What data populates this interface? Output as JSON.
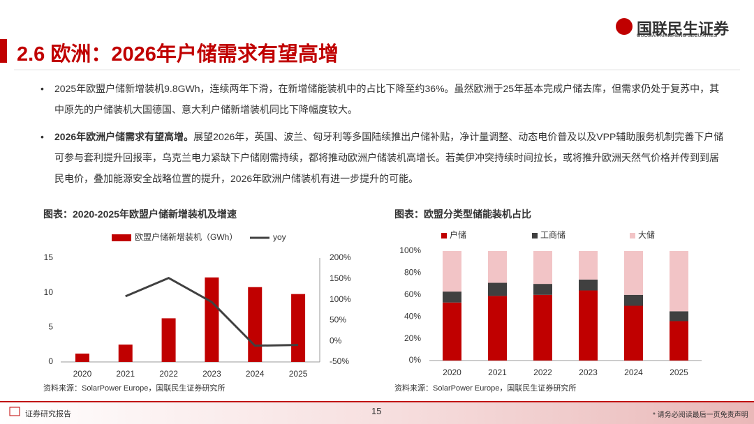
{
  "header": {
    "title": "2.6 欧洲：2026年户储需求有望高增",
    "logo": "国联民生证券",
    "logo_en": "GUOLIAN MINSHENG SECURITIES"
  },
  "bullets": [
    {
      "text": "2025年欧盟户储新增装机9.8GWh，连续两年下滑，在新增储能装机中的占比下降至约36%。虽然欧洲于25年基本完成户储去库，但需求仍处于复苏中，其中原先的户储装机大国德国、意大利户储新增装机同比下降幅度较大。"
    },
    {
      "bold": "2026年欧洲户储需求有望高增。",
      "text": "展望2026年，英国、波兰、匈牙利等多国陆续推出户储补贴，净计量调整、动态电价普及以及VPP辅助服务机制完善下户储可参与套利提升回报率，乌克兰电力紧缺下户储刚需持续，都将推动欧洲户储装机高增长。若美伊冲突持续时间拉长，或将推升欧洲天然气价格并传到到居民电价，叠加能源安全战略位置的提升，2026年欧洲户储装机有进一步提升的可能。"
    }
  ],
  "chart_data": [
    {
      "type": "bar_line",
      "title": "图表：2020-2025年欧盟户储新增装机及增速",
      "source": "资料来源：SolarPower Europe，国联民生证券研究所",
      "categories": [
        "2020",
        "2021",
        "2022",
        "2023",
        "2024",
        "2025"
      ],
      "series": [
        {
          "name": "欧盟户储新增装机（GWh）",
          "color": "#c00000",
          "values": [
            1.2,
            2.5,
            6.3,
            12.2,
            10.8,
            9.8
          ]
        },
        {
          "name": "yoy",
          "color": "#404040",
          "axis": "y2",
          "values": [
            null,
            108,
            152,
            94,
            -11,
            -9
          ]
        }
      ],
      "ylim": [
        0,
        15
      ],
      "yticks": [
        0,
        5,
        10,
        15
      ],
      "y2lim": [
        -50,
        200
      ],
      "y2ticks": [
        {
          "value": -50,
          "label": "-50%"
        },
        {
          "value": 0,
          "label": "0%"
        },
        {
          "value": 50,
          "label": "50%"
        },
        {
          "value": 100,
          "label": "100%"
        },
        {
          "value": 150,
          "label": "150%"
        },
        {
          "value": 200,
          "label": "200%"
        }
      ]
    },
    {
      "type": "stacked_bar",
      "title": "图表：欧盟分类型储能装机占比",
      "source": "资料来源：SolarPower Europe，国联民生证券研究所",
      "categories": [
        "2020",
        "2021",
        "2022",
        "2023",
        "2024",
        "2025"
      ],
      "series": [
        {
          "name": "户储",
          "color": "#c00000",
          "values": [
            53,
            59,
            60,
            64,
            50,
            36
          ]
        },
        {
          "name": "工商储",
          "color": "#404040",
          "values": [
            10,
            12,
            10,
            10,
            10,
            9
          ]
        },
        {
          "name": "大储",
          "color": "#f2c4c6",
          "values": [
            37,
            29,
            30,
            26,
            40,
            55
          ]
        }
      ],
      "ylim": [
        0,
        100
      ],
      "yticks": [
        {
          "value": 0,
          "label": "0%"
        },
        {
          "value": 20,
          "label": "20%"
        },
        {
          "value": 40,
          "label": "40%"
        },
        {
          "value": 60,
          "label": "60%"
        },
        {
          "value": 80,
          "label": "80%"
        },
        {
          "value": 100,
          "label": "100%"
        }
      ]
    }
  ],
  "footer": {
    "label": "证券研究报告",
    "page": "15",
    "disclaimer": "* 请务必阅读最后一页免责声明"
  }
}
